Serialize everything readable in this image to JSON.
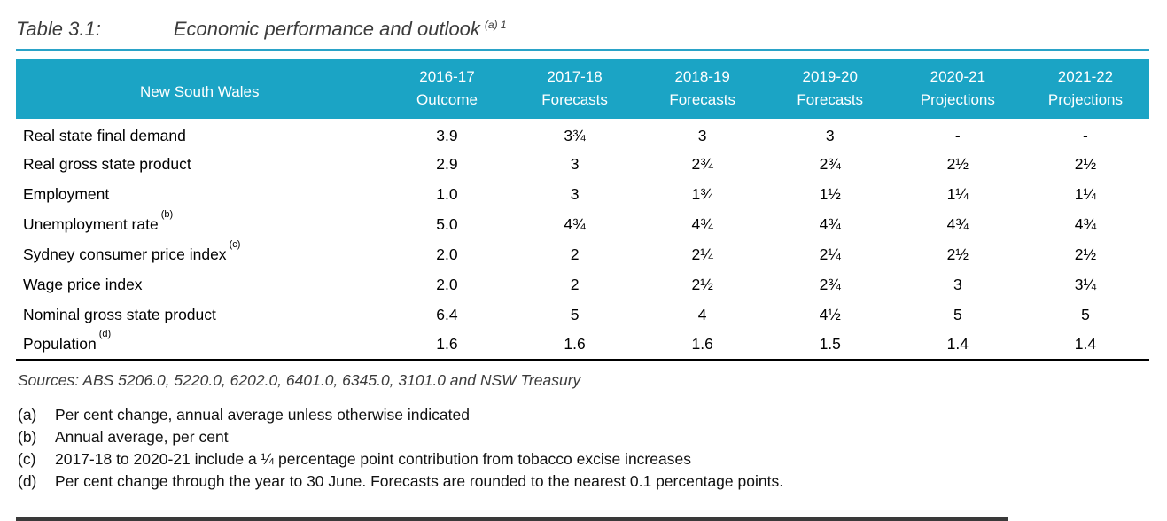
{
  "title": {
    "label": "Table 3.1:",
    "text": "Economic performance and outlook",
    "superscript": "(a) 1"
  },
  "table": {
    "region_label": "New South Wales",
    "columns": [
      {
        "year": "2016-17",
        "type": "Outcome"
      },
      {
        "year": "2017-18",
        "type": "Forecasts"
      },
      {
        "year": "2018-19",
        "type": "Forecasts"
      },
      {
        "year": "2019-20",
        "type": "Forecasts"
      },
      {
        "year": "2020-21",
        "type": "Projections"
      },
      {
        "year": "2021-22",
        "type": "Projections"
      }
    ],
    "rows": [
      {
        "label": "Real state final demand",
        "sup": "",
        "values": [
          "3.9",
          "3¾",
          "3",
          "3",
          "-",
          "-"
        ]
      },
      {
        "label": "Real gross state product",
        "sup": "",
        "values": [
          "2.9",
          "3",
          "2¾",
          "2¾",
          "2½",
          "2½"
        ]
      },
      {
        "label": "Employment",
        "sup": "",
        "values": [
          "1.0",
          "3",
          "1¾",
          "1½",
          "1¼",
          "1¼"
        ]
      },
      {
        "label": "Unemployment rate",
        "sup": "(b)",
        "values": [
          "5.0",
          "4¾",
          "4¾",
          "4¾",
          "4¾",
          "4¾"
        ]
      },
      {
        "label": "Sydney consumer price index",
        "sup": "(c)",
        "values": [
          "2.0",
          "2",
          "2¼",
          "2¼",
          "2½",
          "2½"
        ]
      },
      {
        "label": "Wage price index",
        "sup": "",
        "values": [
          "2.0",
          "2",
          "2½",
          "2¾",
          "3",
          "3¼"
        ]
      },
      {
        "label": "Nominal gross state product",
        "sup": "",
        "values": [
          "6.4",
          "5",
          "4",
          "4½",
          "5",
          "5"
        ]
      },
      {
        "label": "Population",
        "sup": "(d)",
        "values": [
          "1.6",
          "1.6",
          "1.6",
          "1.5",
          "1.4",
          "1.4"
        ]
      }
    ]
  },
  "sources": "Sources: ABS 5206.0, 5220.0, 6202.0, 6401.0, 6345.0, 3101.0 and NSW Treasury",
  "footnotes": [
    {
      "marker": "(a)",
      "text": "Per cent change, annual average unless otherwise indicated"
    },
    {
      "marker": "(b)",
      "text": "Annual average, per cent"
    },
    {
      "marker": "(c)",
      "text": "2017-18 to 2020-21 include a ¼ percentage point contribution from tobacco excise increases"
    },
    {
      "marker": "(d)",
      "text": "Per cent change through the year to 30 June. Forecasts are rounded to the nearest 0.1 percentage points."
    }
  ],
  "colors": {
    "header_bg": "#1ba4c5",
    "title_rule": "#2aa3c8"
  }
}
